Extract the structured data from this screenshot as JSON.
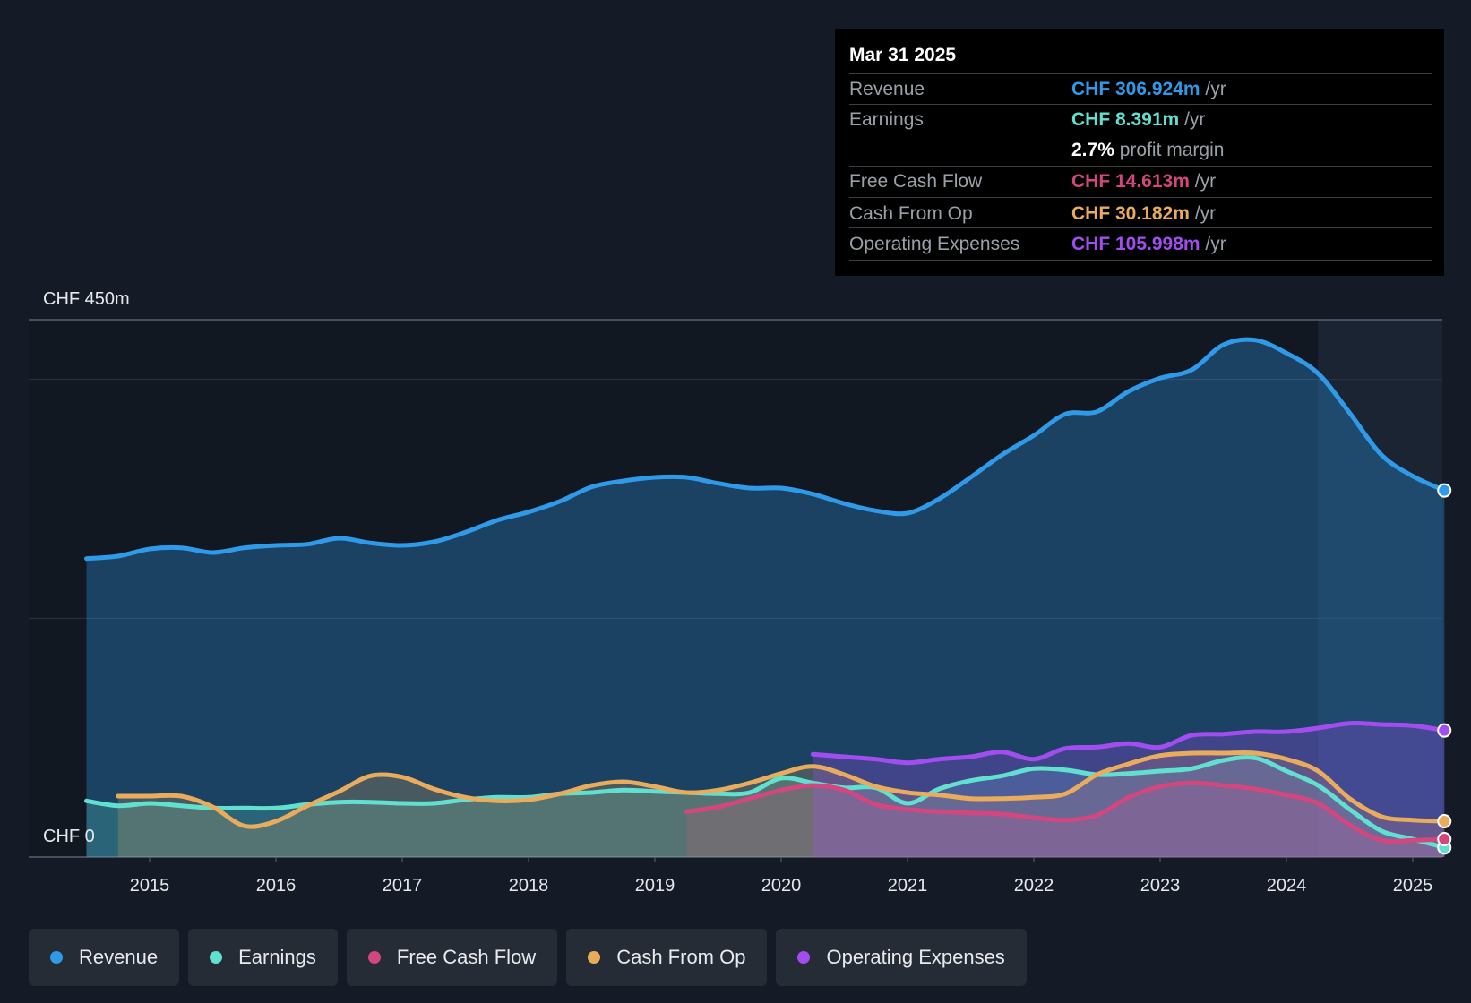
{
  "colors": {
    "revenue": "#2f9ae8",
    "earnings": "#61e0cf",
    "fcf": "#d2477e",
    "cfo": "#e8ac5c",
    "opex": "#a24df0"
  },
  "tooltip": {
    "date": "Mar 31 2025",
    "rows": [
      {
        "label": "Revenue",
        "value": "CHF 306.924m",
        "unit": "/yr"
      },
      {
        "label": "Earnings",
        "value": "CHF 8.391m",
        "unit": "/yr"
      },
      {
        "label": "",
        "value": "2.7%",
        "unit": "profit margin"
      },
      {
        "label": "Free Cash Flow",
        "value": "CHF 14.613m",
        "unit": "/yr"
      },
      {
        "label": "Cash From Op",
        "value": "CHF 30.182m",
        "unit": "/yr"
      },
      {
        "label": "Operating Expenses",
        "value": "CHF 105.998m",
        "unit": "/yr"
      }
    ]
  },
  "legend": [
    "Revenue",
    "Earnings",
    "Free Cash Flow",
    "Cash From Op",
    "Operating Expenses"
  ],
  "chart_data": {
    "type": "area",
    "ylabel_top": "CHF 450m",
    "ylabel_bottom": "CHF 0",
    "ylim": [
      0,
      450
    ],
    "xlim": [
      2014.5,
      2025.25
    ],
    "x_ticks": [
      "2015",
      "2016",
      "2017",
      "2018",
      "2019",
      "2020",
      "2021",
      "2022",
      "2023",
      "2024",
      "2025"
    ],
    "forecast_start": 2024.25,
    "series": [
      {
        "name": "Revenue",
        "key": "revenue",
        "points": [
          [
            2014.5,
            250
          ],
          [
            2014.75,
            252
          ],
          [
            2015,
            258
          ],
          [
            2015.25,
            259
          ],
          [
            2015.5,
            255
          ],
          [
            2015.75,
            259
          ],
          [
            2016,
            261
          ],
          [
            2016.25,
            262
          ],
          [
            2016.5,
            267
          ],
          [
            2016.75,
            263
          ],
          [
            2017,
            261
          ],
          [
            2017.25,
            264
          ],
          [
            2017.5,
            272
          ],
          [
            2017.75,
            282
          ],
          [
            2018,
            289
          ],
          [
            2018.25,
            298
          ],
          [
            2018.5,
            310
          ],
          [
            2018.75,
            315
          ],
          [
            2019,
            318
          ],
          [
            2019.25,
            318
          ],
          [
            2019.5,
            313
          ],
          [
            2019.75,
            309
          ],
          [
            2020,
            309
          ],
          [
            2020.25,
            304
          ],
          [
            2020.5,
            296
          ],
          [
            2020.75,
            290
          ],
          [
            2021,
            288
          ],
          [
            2021.25,
            300
          ],
          [
            2021.5,
            318
          ],
          [
            2021.75,
            337
          ],
          [
            2022,
            353
          ],
          [
            2022.25,
            371
          ],
          [
            2022.5,
            373
          ],
          [
            2022.75,
            390
          ],
          [
            2023,
            401
          ],
          [
            2023.25,
            408
          ],
          [
            2023.5,
            429
          ],
          [
            2023.75,
            433
          ],
          [
            2024,
            422
          ],
          [
            2024.25,
            405
          ],
          [
            2024.5,
            372
          ],
          [
            2024.75,
            337
          ],
          [
            2025,
            319
          ],
          [
            2025.25,
            307
          ]
        ]
      },
      {
        "name": "Earnings",
        "key": "earnings",
        "points": [
          [
            2014.5,
            47
          ],
          [
            2014.75,
            43
          ],
          [
            2015,
            45
          ],
          [
            2015.25,
            43
          ],
          [
            2015.5,
            41
          ],
          [
            2015.75,
            41
          ],
          [
            2016,
            41
          ],
          [
            2016.25,
            44
          ],
          [
            2016.5,
            46
          ],
          [
            2016.75,
            46
          ],
          [
            2017,
            45
          ],
          [
            2017.25,
            45
          ],
          [
            2017.5,
            48
          ],
          [
            2017.75,
            50
          ],
          [
            2018,
            50
          ],
          [
            2018.25,
            53
          ],
          [
            2018.5,
            54
          ],
          [
            2018.75,
            56
          ],
          [
            2019,
            55
          ],
          [
            2019.25,
            54
          ],
          [
            2019.5,
            53
          ],
          [
            2019.75,
            54
          ],
          [
            2020,
            66
          ],
          [
            2020.25,
            62
          ],
          [
            2020.5,
            58
          ],
          [
            2020.75,
            58
          ],
          [
            2021,
            45
          ],
          [
            2021.25,
            57
          ],
          [
            2021.5,
            64
          ],
          [
            2021.75,
            68
          ],
          [
            2022,
            74
          ],
          [
            2022.25,
            73
          ],
          [
            2022.5,
            69
          ],
          [
            2022.75,
            70
          ],
          [
            2023,
            72
          ],
          [
            2023.25,
            74
          ],
          [
            2023.5,
            81
          ],
          [
            2023.75,
            83
          ],
          [
            2024,
            72
          ],
          [
            2024.25,
            60
          ],
          [
            2024.5,
            40
          ],
          [
            2024.75,
            22
          ],
          [
            2025,
            15
          ],
          [
            2025.25,
            8
          ]
        ]
      },
      {
        "name": "Free Cash Flow",
        "key": "fcf",
        "points": [
          [
            2019.25,
            38
          ],
          [
            2019.5,
            42
          ],
          [
            2019.75,
            49
          ],
          [
            2020,
            56
          ],
          [
            2020.25,
            60
          ],
          [
            2020.5,
            56
          ],
          [
            2020.75,
            44
          ],
          [
            2021,
            40
          ],
          [
            2021.25,
            38
          ],
          [
            2021.5,
            37
          ],
          [
            2021.75,
            36
          ],
          [
            2022,
            33
          ],
          [
            2022.25,
            31
          ],
          [
            2022.5,
            35
          ],
          [
            2022.75,
            50
          ],
          [
            2023,
            59
          ],
          [
            2023.25,
            62
          ],
          [
            2023.5,
            60
          ],
          [
            2023.75,
            57
          ],
          [
            2024,
            52
          ],
          [
            2024.25,
            45
          ],
          [
            2024.5,
            27
          ],
          [
            2024.75,
            14
          ],
          [
            2025,
            14
          ],
          [
            2025.25,
            15
          ]
        ]
      },
      {
        "name": "Cash From Op",
        "key": "cfo",
        "points": [
          [
            2014.75,
            51
          ],
          [
            2015,
            51
          ],
          [
            2015.25,
            51
          ],
          [
            2015.5,
            42
          ],
          [
            2015.75,
            26
          ],
          [
            2016,
            30
          ],
          [
            2016.25,
            43
          ],
          [
            2016.5,
            55
          ],
          [
            2016.75,
            68
          ],
          [
            2017,
            67
          ],
          [
            2017.25,
            57
          ],
          [
            2017.5,
            50
          ],
          [
            2017.75,
            47
          ],
          [
            2018,
            48
          ],
          [
            2018.25,
            53
          ],
          [
            2018.5,
            60
          ],
          [
            2018.75,
            63
          ],
          [
            2019,
            59
          ],
          [
            2019.25,
            54
          ],
          [
            2019.5,
            56
          ],
          [
            2019.75,
            62
          ],
          [
            2020,
            70
          ],
          [
            2020.25,
            76
          ],
          [
            2020.5,
            69
          ],
          [
            2020.75,
            59
          ],
          [
            2021,
            54
          ],
          [
            2021.25,
            52
          ],
          [
            2021.5,
            49
          ],
          [
            2021.75,
            49
          ],
          [
            2022,
            50
          ],
          [
            2022.25,
            53
          ],
          [
            2022.5,
            69
          ],
          [
            2022.75,
            78
          ],
          [
            2023,
            85
          ],
          [
            2023.25,
            87
          ],
          [
            2023.5,
            87
          ],
          [
            2023.75,
            87
          ],
          [
            2024,
            82
          ],
          [
            2024.25,
            72
          ],
          [
            2024.5,
            49
          ],
          [
            2024.75,
            34
          ],
          [
            2025,
            31
          ],
          [
            2025.25,
            30
          ]
        ]
      },
      {
        "name": "Operating Expenses",
        "key": "opex",
        "points": [
          [
            2020.25,
            86
          ],
          [
            2020.5,
            84
          ],
          [
            2020.75,
            82
          ],
          [
            2021,
            79
          ],
          [
            2021.25,
            82
          ],
          [
            2021.5,
            84
          ],
          [
            2021.75,
            88
          ],
          [
            2022,
            82
          ],
          [
            2022.25,
            91
          ],
          [
            2022.5,
            92
          ],
          [
            2022.75,
            95
          ],
          [
            2023,
            92
          ],
          [
            2023.25,
            102
          ],
          [
            2023.5,
            103
          ],
          [
            2023.75,
            105
          ],
          [
            2024,
            105
          ],
          [
            2024.25,
            108
          ],
          [
            2024.5,
            112
          ],
          [
            2024.75,
            111
          ],
          [
            2025,
            110
          ],
          [
            2025.25,
            106
          ]
        ]
      }
    ]
  }
}
